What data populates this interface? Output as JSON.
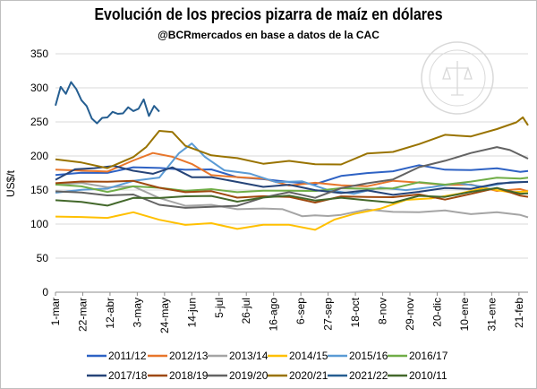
{
  "chart_data": {
    "type": "line",
    "title": "Evolución de los precios pizarra de maíz en dólares",
    "subtitle": "@BCRmercados en base a datos de la CAC",
    "ylabel": "US$/t",
    "xlabel": "",
    "ylim": [
      0,
      350
    ],
    "yticks": [
      0,
      50,
      100,
      150,
      200,
      250,
      300,
      350
    ],
    "categories": [
      "1-mar",
      "22-mar",
      "12-abr",
      "3-may",
      "24-may",
      "14-jun",
      "5-jul",
      "26-jul",
      "16-ago",
      "6-sep",
      "27-sep",
      "18-oct",
      "8-nov",
      "29-nov",
      "20-dic",
      "10-ene",
      "31-ene",
      "21-feb"
    ],
    "x_positions": [
      0,
      21,
      42,
      63,
      84,
      105,
      126,
      147,
      168,
      189,
      210,
      231,
      252,
      273,
      294,
      315,
      336,
      357
    ],
    "x_range": [
      0,
      364
    ],
    "seal_text": "BOLSA DE COMERCIO DE ROSARIO",
    "series": [
      {
        "name": "2011/12",
        "color": "#2e62c4",
        "points": [
          [
            0,
            172
          ],
          [
            20,
            175
          ],
          [
            40,
            178
          ],
          [
            60,
            180
          ],
          [
            80,
            184
          ],
          [
            100,
            181
          ],
          [
            120,
            177
          ],
          [
            140,
            172
          ],
          [
            160,
            165
          ],
          [
            180,
            160
          ],
          [
            200,
            162
          ],
          [
            220,
            168
          ],
          [
            240,
            175
          ],
          [
            260,
            180
          ],
          [
            280,
            183
          ],
          [
            300,
            182
          ],
          [
            320,
            180
          ],
          [
            340,
            179
          ],
          [
            358,
            180
          ],
          [
            364,
            178
          ]
        ]
      },
      {
        "name": "2012/13",
        "color": "#e8762b",
        "points": [
          [
            0,
            180
          ],
          [
            20,
            178
          ],
          [
            40,
            180
          ],
          [
            60,
            190
          ],
          [
            75,
            206
          ],
          [
            90,
            200
          ],
          [
            105,
            185
          ],
          [
            120,
            175
          ],
          [
            140,
            168
          ],
          [
            160,
            165
          ],
          [
            180,
            160
          ],
          [
            200,
            158
          ],
          [
            220,
            157
          ],
          [
            240,
            158
          ],
          [
            260,
            160
          ],
          [
            280,
            163
          ],
          [
            300,
            158
          ],
          [
            320,
            155
          ],
          [
            340,
            152
          ],
          [
            358,
            150
          ],
          [
            364,
            148
          ]
        ]
      },
      {
        "name": "2013/14",
        "color": "#a5a5a5",
        "points": [
          [
            0,
            158
          ],
          [
            20,
            160
          ],
          [
            40,
            157
          ],
          [
            60,
            152
          ],
          [
            80,
            140
          ],
          [
            100,
            128
          ],
          [
            120,
            125
          ],
          [
            140,
            125
          ],
          [
            160,
            122
          ],
          [
            175,
            120
          ],
          [
            190,
            115
          ],
          [
            200,
            110
          ],
          [
            210,
            112
          ],
          [
            220,
            116
          ],
          [
            240,
            118
          ],
          [
            260,
            120
          ],
          [
            280,
            118
          ],
          [
            300,
            117
          ],
          [
            320,
            118
          ],
          [
            340,
            116
          ],
          [
            358,
            112
          ],
          [
            364,
            110
          ]
        ]
      },
      {
        "name": "2014/15",
        "color": "#ffc000",
        "points": [
          [
            0,
            111
          ],
          [
            20,
            110
          ],
          [
            40,
            112
          ],
          [
            60,
            114
          ],
          [
            80,
            108
          ],
          [
            100,
            100
          ],
          [
            120,
            98
          ],
          [
            140,
            96
          ],
          [
            160,
            98
          ],
          [
            180,
            97
          ],
          [
            200,
            95
          ],
          [
            215,
            104
          ],
          [
            230,
            115
          ],
          [
            250,
            125
          ],
          [
            270,
            132
          ],
          [
            290,
            140
          ],
          [
            310,
            145
          ],
          [
            330,
            150
          ],
          [
            350,
            150
          ],
          [
            364,
            148
          ]
        ]
      },
      {
        "name": "2015/16",
        "color": "#5b9bd5",
        "points": [
          [
            0,
            146
          ],
          [
            20,
            150
          ],
          [
            40,
            155
          ],
          [
            60,
            160
          ],
          [
            80,
            170
          ],
          [
            95,
            205
          ],
          [
            105,
            215
          ],
          [
            115,
            202
          ],
          [
            130,
            178
          ],
          [
            150,
            172
          ],
          [
            170,
            165
          ],
          [
            190,
            160
          ],
          [
            210,
            150
          ],
          [
            230,
            147
          ],
          [
            250,
            150
          ],
          [
            270,
            152
          ],
          [
            290,
            155
          ],
          [
            310,
            157
          ],
          [
            330,
            158
          ],
          [
            350,
            160
          ],
          [
            364,
            162
          ]
        ]
      },
      {
        "name": "2016/17",
        "color": "#70ad47",
        "points": [
          [
            0,
            158
          ],
          [
            20,
            155
          ],
          [
            40,
            150
          ],
          [
            60,
            152
          ],
          [
            80,
            155
          ],
          [
            100,
            150
          ],
          [
            120,
            148
          ],
          [
            140,
            150
          ],
          [
            160,
            148
          ],
          [
            180,
            147
          ],
          [
            200,
            152
          ],
          [
            220,
            150
          ],
          [
            240,
            152
          ],
          [
            260,
            155
          ],
          [
            280,
            158
          ],
          [
            300,
            160
          ],
          [
            320,
            163
          ],
          [
            340,
            165
          ],
          [
            358,
            170
          ],
          [
            364,
            168
          ]
        ]
      },
      {
        "name": "2017/18",
        "color": "#264478",
        "points": [
          [
            0,
            165
          ],
          [
            15,
            180
          ],
          [
            30,
            185
          ],
          [
            45,
            182
          ],
          [
            60,
            180
          ],
          [
            75,
            175
          ],
          [
            90,
            180
          ],
          [
            105,
            172
          ],
          [
            120,
            168
          ],
          [
            140,
            160
          ],
          [
            160,
            158
          ],
          [
            180,
            155
          ],
          [
            200,
            150
          ],
          [
            220,
            148
          ],
          [
            240,
            146
          ],
          [
            260,
            145
          ],
          [
            280,
            148
          ],
          [
            300,
            150
          ],
          [
            320,
            155
          ],
          [
            340,
            158
          ],
          [
            358,
            160
          ],
          [
            364,
            162
          ]
        ]
      },
      {
        "name": "2018/19",
        "color": "#9e480e",
        "points": [
          [
            0,
            160
          ],
          [
            20,
            162
          ],
          [
            40,
            165
          ],
          [
            60,
            160
          ],
          [
            80,
            155
          ],
          [
            100,
            148
          ],
          [
            120,
            145
          ],
          [
            140,
            142
          ],
          [
            160,
            140
          ],
          [
            180,
            138
          ],
          [
            200,
            135
          ],
          [
            220,
            138
          ],
          [
            240,
            140
          ],
          [
            260,
            142
          ],
          [
            280,
            140
          ],
          [
            300,
            138
          ],
          [
            320,
            145
          ],
          [
            340,
            150
          ],
          [
            358,
            145
          ],
          [
            364,
            140
          ]
        ]
      },
      {
        "name": "2019/20",
        "color": "#636363",
        "points": [
          [
            0,
            148
          ],
          [
            20,
            146
          ],
          [
            40,
            145
          ],
          [
            60,
            140
          ],
          [
            80,
            130
          ],
          [
            100,
            125
          ],
          [
            120,
            122
          ],
          [
            140,
            130
          ],
          [
            160,
            138
          ],
          [
            180,
            145
          ],
          [
            200,
            142
          ],
          [
            220,
            150
          ],
          [
            240,
            160
          ],
          [
            260,
            168
          ],
          [
            280,
            180
          ],
          [
            300,
            195
          ],
          [
            320,
            205
          ],
          [
            340,
            210
          ],
          [
            350,
            212
          ],
          [
            364,
            196
          ]
        ]
      },
      {
        "name": "2020/21",
        "color": "#997300",
        "points": [
          [
            0,
            195
          ],
          [
            20,
            190
          ],
          [
            40,
            185
          ],
          [
            60,
            195
          ],
          [
            70,
            215
          ],
          [
            80,
            238
          ],
          [
            90,
            232
          ],
          [
            100,
            218
          ],
          [
            120,
            200
          ],
          [
            140,
            195
          ],
          [
            160,
            192
          ],
          [
            180,
            190
          ],
          [
            200,
            188
          ],
          [
            220,
            190
          ],
          [
            240,
            200
          ],
          [
            260,
            208
          ],
          [
            280,
            218
          ],
          [
            300,
            228
          ],
          [
            320,
            232
          ],
          [
            340,
            238
          ],
          [
            355,
            248
          ],
          [
            360,
            260
          ],
          [
            364,
            245
          ]
        ]
      },
      {
        "name": "2021/22",
        "color": "#255e91",
        "points": [
          [
            0,
            274
          ],
          [
            4,
            301
          ],
          [
            8,
            294
          ],
          [
            12,
            305
          ],
          [
            16,
            300
          ],
          [
            20,
            283
          ],
          [
            24,
            270
          ],
          [
            28,
            258
          ],
          [
            32,
            247
          ],
          [
            36,
            254
          ],
          [
            40,
            260
          ],
          [
            44,
            262
          ],
          [
            48,
            262
          ],
          [
            52,
            265
          ],
          [
            56,
            268
          ],
          [
            60,
            268
          ],
          [
            64,
            270
          ],
          [
            68,
            280
          ],
          [
            72,
            262
          ],
          [
            76,
            272
          ],
          [
            80,
            265
          ]
        ]
      },
      {
        "name": "2010/11",
        "color": "#43682b",
        "points": [
          [
            0,
            135
          ],
          [
            20,
            132
          ],
          [
            40,
            130
          ],
          [
            60,
            135
          ],
          [
            80,
            140
          ],
          [
            100,
            142
          ],
          [
            120,
            138
          ],
          [
            140,
            136
          ],
          [
            160,
            138
          ],
          [
            180,
            140
          ],
          [
            200,
            138
          ],
          [
            220,
            136
          ],
          [
            240,
            135
          ],
          [
            260,
            134
          ],
          [
            280,
            138
          ],
          [
            300,
            142
          ],
          [
            320,
            148
          ],
          [
            340,
            150
          ],
          [
            358,
            148
          ],
          [
            364,
            145
          ]
        ]
      }
    ]
  }
}
